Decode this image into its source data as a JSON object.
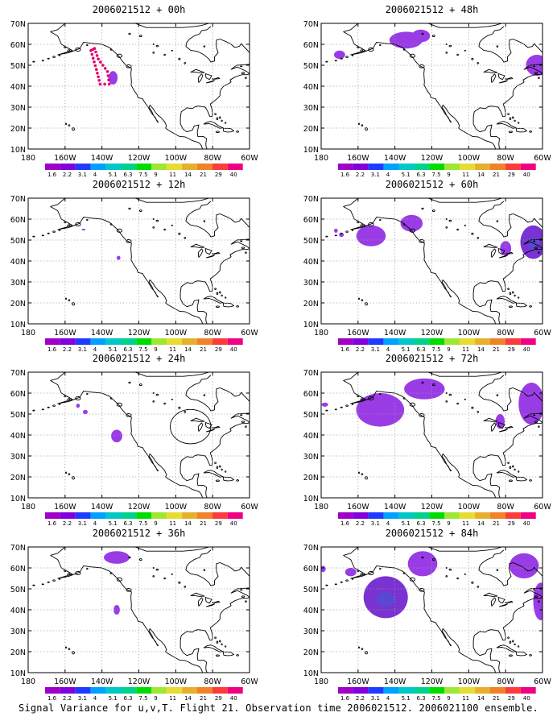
{
  "figure": {
    "caption": "Signal Variance for u,v,T. Flight 21. Observation time 2006021512. 2006021100 ensemble."
  },
  "colorbar": {
    "labels": [
      "1.6",
      "2.2",
      "3.1",
      "4",
      "5.1",
      "6.3",
      "7.5",
      "9",
      "11",
      "14",
      "21",
      "29",
      "40"
    ],
    "colors": [
      "#a000c8",
      "#8200dc",
      "#1e3cff",
      "#00a0ff",
      "#00c8c8",
      "#00d28c",
      "#00dc00",
      "#a0e632",
      "#e6dc32",
      "#e6af2d",
      "#f08228",
      "#fa3c3c",
      "#f00082"
    ]
  },
  "axes": {
    "x_ticks": [
      "180",
      "160W",
      "140W",
      "120W",
      "100W",
      "80W",
      "60W"
    ],
    "y_ticks": [
      "10N",
      "20N",
      "30N",
      "40N",
      "50N",
      "60N",
      "70N"
    ],
    "lon_range": [
      -180,
      -60
    ],
    "lat_range": [
      10,
      70
    ],
    "grid": true
  },
  "colors": {
    "fill": "#9a3ce6",
    "fill_dark": "#7a32d2",
    "fill_core": "#5050d2",
    "flight_track": "#e6006e",
    "coast": "#000000",
    "grid": "#999999"
  },
  "chart_data": [
    {
      "type": "map",
      "title": "2006021512 + 00h",
      "regions": [
        {
          "lon": -134,
          "lat": 44,
          "rlon": 2.5,
          "rlat": 3.2,
          "level": "1.6"
        }
      ],
      "flight_track": [
        {
          "lon": -146,
          "lat": 57
        },
        {
          "lon": -144,
          "lat": 58
        },
        {
          "lon": -142,
          "lat": 53
        },
        {
          "lon": -137,
          "lat": 47
        },
        {
          "lon": -136,
          "lat": 41
        },
        {
          "lon": -141,
          "lat": 41
        },
        {
          "lon": -143,
          "lat": 48
        },
        {
          "lon": -146,
          "lat": 57
        }
      ]
    },
    {
      "type": "map",
      "title": "2006021512 + 48h",
      "regions": [
        {
          "lon": -134,
          "lat": 62,
          "rlon": 9,
          "rlat": 4,
          "level": "1.6"
        },
        {
          "lon": -126,
          "lat": 64,
          "rlon": 5,
          "rlat": 3,
          "level": "1.6"
        },
        {
          "lon": -170,
          "lat": 55,
          "rlon": 3,
          "rlat": 2,
          "level": "1.6"
        },
        {
          "lon": -63,
          "lat": 50,
          "rlon": 6,
          "rlat": 5,
          "level": "1.6"
        }
      ]
    },
    {
      "type": "map",
      "title": "2006021512 + 12h",
      "regions": [
        {
          "lon": -131,
          "lat": 41.5,
          "rlon": 1,
          "rlat": 1,
          "level": "1.6"
        },
        {
          "lon": -150,
          "lat": 55,
          "rlon": 1,
          "rlat": 0.4,
          "level": "1.6"
        }
      ]
    },
    {
      "type": "map",
      "title": "2006021512 + 60h",
      "regions": [
        {
          "lon": -153,
          "lat": 52,
          "rlon": 8,
          "rlat": 5,
          "level": "1.6"
        },
        {
          "lon": -131,
          "lat": 58,
          "rlon": 6,
          "rlat": 4,
          "level": "1.6"
        },
        {
          "lon": -169,
          "lat": 52.5,
          "rlon": 1.3,
          "rlat": 1,
          "level": "1.6"
        },
        {
          "lon": -172,
          "lat": 54.5,
          "rlon": 1,
          "rlat": 1,
          "level": "1.6"
        },
        {
          "lon": -65,
          "lat": 49,
          "rlon": 7,
          "rlat": 8,
          "level": "2.2"
        },
        {
          "lon": -80,
          "lat": 46,
          "rlon": 3,
          "rlat": 3.5,
          "level": "1.6"
        }
      ]
    },
    {
      "type": "map",
      "title": "2006021512 + 24h",
      "regions": [
        {
          "lon": -132,
          "lat": 39.5,
          "rlon": 3,
          "rlat": 3,
          "level": "1.6"
        },
        {
          "lon": -149,
          "lat": 51,
          "rlon": 1.3,
          "rlat": 1,
          "level": "1.6"
        },
        {
          "lon": -153,
          "lat": 54,
          "rlon": 1,
          "rlat": 1,
          "level": "1.6"
        }
      ]
    },
    {
      "type": "map",
      "title": "2006021512 + 72h",
      "regions": [
        {
          "lon": -148,
          "lat": 52,
          "rlon": 13,
          "rlat": 8,
          "level": "1.6"
        },
        {
          "lon": -124,
          "lat": 62,
          "rlon": 11,
          "rlat": 5,
          "level": "1.6"
        },
        {
          "lon": -178,
          "lat": 54.5,
          "rlon": 1.8,
          "rlat": 1,
          "level": "1.6"
        },
        {
          "lon": -66,
          "lat": 55,
          "rlon": 7,
          "rlat": 10,
          "level": "1.6"
        },
        {
          "lon": -83,
          "lat": 46.5,
          "rlon": 2.5,
          "rlat": 3.5,
          "level": "1.6"
        }
      ]
    },
    {
      "type": "map",
      "title": "2006021512 + 36h",
      "regions": [
        {
          "lon": -132,
          "lat": 65,
          "rlon": 7,
          "rlat": 3,
          "level": "1.6"
        },
        {
          "lon": -132,
          "lat": 40,
          "rlon": 1.7,
          "rlat": 2.3,
          "level": "1.6"
        }
      ]
    },
    {
      "type": "map",
      "title": "2006021512 + 84h",
      "regions": [
        {
          "lon": -145,
          "lat": 46,
          "rlon": 12,
          "rlat": 10,
          "level": "2.2"
        },
        {
          "lon": -125,
          "lat": 62,
          "rlon": 8,
          "rlat": 6,
          "level": "1.6"
        },
        {
          "lon": -164,
          "lat": 58,
          "rlon": 3,
          "rlat": 2,
          "level": "1.6"
        },
        {
          "lon": -179,
          "lat": 59.5,
          "rlon": 1.5,
          "rlat": 1.5,
          "level": "1.6"
        },
        {
          "lon": -70,
          "lat": 61,
          "rlon": 8,
          "rlat": 6,
          "level": "1.6"
        },
        {
          "lon": -61,
          "lat": 44,
          "rlon": 4,
          "rlat": 9,
          "level": "1.6"
        }
      ]
    }
  ]
}
